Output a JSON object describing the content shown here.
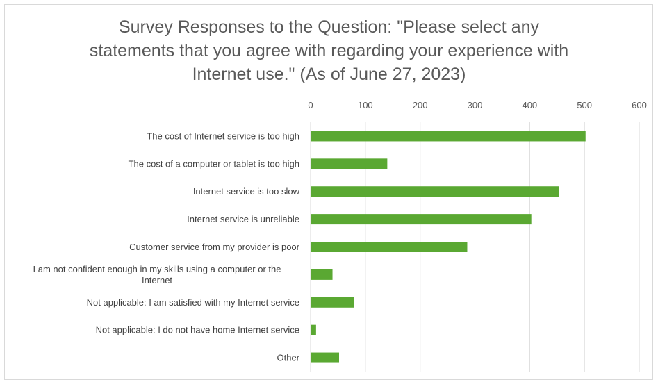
{
  "chart_data": {
    "type": "bar",
    "orientation": "horizontal",
    "title_lines": [
      "Survey Responses to the Question: \"Please select any",
      "statements that you agree with regarding your experience with",
      "Internet use.\" (As of June 27, 2023)"
    ],
    "xlabel": "",
    "ylabel": "",
    "xlim": [
      0,
      600
    ],
    "ticks": [
      "0",
      "100",
      "200",
      "300",
      "400",
      "500",
      "600"
    ],
    "grid": true,
    "axis_position": "top",
    "bar_color": "#5aa832",
    "categories": [
      [
        "The cost of Internet service is too high"
      ],
      [
        "The cost of a computer or tablet is too high"
      ],
      [
        "Internet service is too slow"
      ],
      [
        "Internet service is unreliable"
      ],
      [
        "Customer service from my provider is poor"
      ],
      [
        "I am not confident enough in my skills using a computer or the",
        "Internet"
      ],
      [
        "Not applicable: I am satisfied with my Internet service"
      ],
      [
        "Not applicable: I do not have home Internet service"
      ],
      [
        "Other"
      ]
    ],
    "values": [
      502,
      140,
      453,
      403,
      286,
      40,
      79,
      10,
      52
    ]
  }
}
